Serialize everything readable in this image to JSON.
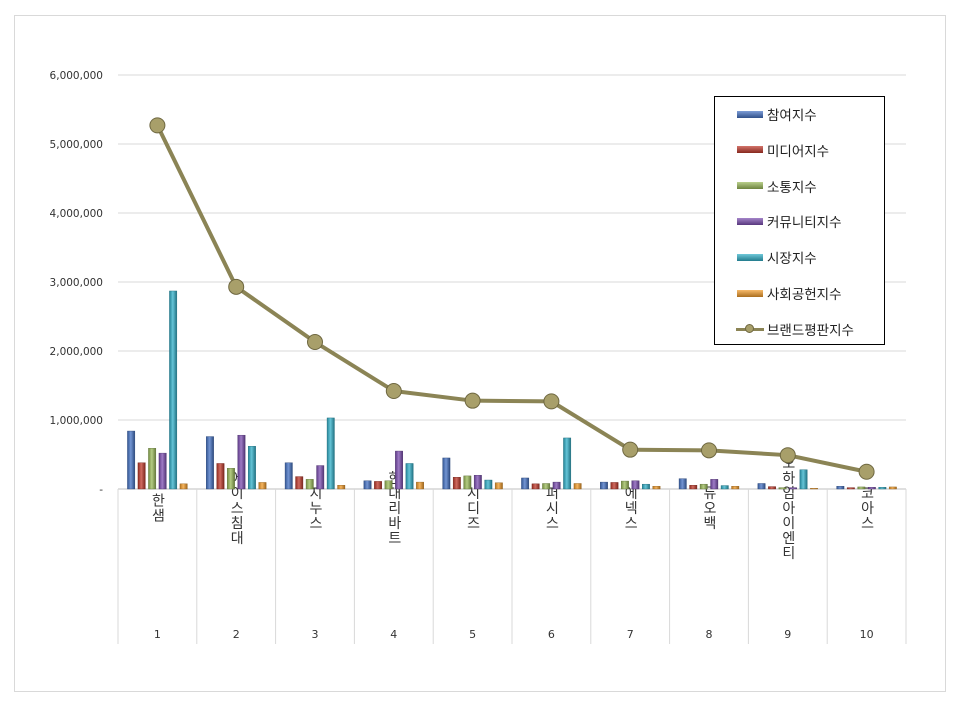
{
  "chart_data": {
    "type": "bar",
    "title": "",
    "xlabel": "",
    "ylabel": "",
    "ylim": [
      0,
      6000000
    ],
    "yticks": [
      0,
      1000000,
      2000000,
      3000000,
      4000000,
      5000000,
      6000000
    ],
    "ytick_labels": [
      "-",
      "1,000,000",
      "2,000,000",
      "3,000,000",
      "4,000,000",
      "5,000,000",
      "6,000,000"
    ],
    "grid": true,
    "legend_position": "top-right",
    "categories": [
      "한샘",
      "에이스침대",
      "지누스",
      "현대리바트",
      "시디즈",
      "퍼시스",
      "에넥스",
      "듀오백",
      "오하임아이엔티",
      "코아스"
    ],
    "ranks": [
      "1",
      "2",
      "3",
      "4",
      "5",
      "6",
      "7",
      "8",
      "9",
      "10"
    ],
    "series": [
      {
        "name": "참여지수",
        "type": "bar",
        "color": "#4472c4",
        "values": [
          840000,
          760000,
          380000,
          120000,
          450000,
          160000,
          100000,
          150000,
          80000,
          40000
        ]
      },
      {
        "name": "미디어지수",
        "type": "bar",
        "color": "#c0392b",
        "values": [
          380000,
          370000,
          180000,
          110000,
          170000,
          75000,
          95000,
          55000,
          35000,
          20000
        ]
      },
      {
        "name": "소통지수",
        "type": "bar",
        "color": "#9bbb59",
        "values": [
          590000,
          300000,
          140000,
          120000,
          190000,
          80000,
          115000,
          70000,
          20000,
          30000
        ]
      },
      {
        "name": "커뮤니티지수",
        "type": "bar",
        "color": "#7d4fb2",
        "values": [
          520000,
          780000,
          340000,
          550000,
          200000,
          100000,
          120000,
          140000,
          20000,
          25000
        ]
      },
      {
        "name": "시장지수",
        "type": "bar",
        "color": "#31b0c9",
        "values": [
          2870000,
          620000,
          1030000,
          370000,
          130000,
          740000,
          70000,
          50000,
          280000,
          25000
        ]
      },
      {
        "name": "사회공헌지수",
        "type": "bar",
        "color": "#f39c2a",
        "values": [
          75000,
          95000,
          55000,
          100000,
          90000,
          80000,
          40000,
          40000,
          10000,
          30000
        ]
      },
      {
        "name": "브랜드평판지수",
        "type": "line",
        "color": "#8b8455",
        "marker_color": "#a89f6a",
        "values": [
          5270000,
          2930000,
          2130000,
          1420000,
          1280000,
          1270000,
          570000,
          560000,
          490000,
          250000
        ]
      }
    ]
  }
}
